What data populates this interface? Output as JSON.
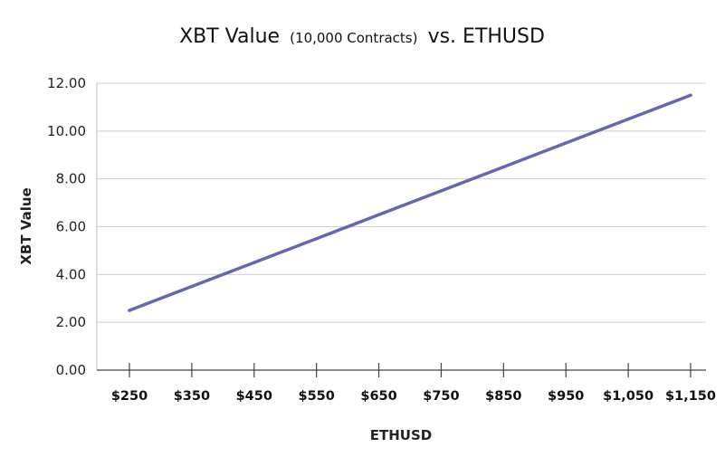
{
  "chart_data": {
    "type": "line",
    "title": "XBT Value",
    "subtitle": "(10,000 Contracts)",
    "title_suffix": "vs. ETHUSD",
    "xlabel": "ETHUSD",
    "ylabel": "XBT Value",
    "categories": [
      "$250",
      "$350",
      "$450",
      "$550",
      "$650",
      "$750",
      "$850",
      "$950",
      "$1,050",
      "$1,150"
    ],
    "x": [
      250,
      350,
      450,
      550,
      650,
      750,
      850,
      950,
      1050,
      1150
    ],
    "series": [
      {
        "values": [
          2.5,
          3.5,
          4.5,
          5.5,
          6.5,
          7.5,
          8.5,
          9.5,
          10.5,
          11.5
        ],
        "color": "#6567b1"
      }
    ],
    "ylim": [
      0,
      12
    ],
    "yticks": [
      "0.00",
      "2.00",
      "4.00",
      "6.00",
      "8.00",
      "10.00",
      "12.00"
    ],
    "grid": true,
    "legend": "none"
  }
}
